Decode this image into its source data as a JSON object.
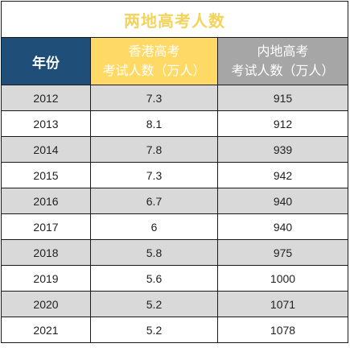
{
  "title": "两地高考人数",
  "headers": {
    "year": "年份",
    "hk_line1": "香港高考",
    "hk_line2": "考试人数（万人）",
    "ml_line1": "内地高考",
    "ml_line2": "考试人数（万人）"
  },
  "rows": [
    {
      "year": "2012",
      "hk": "7.3",
      "ml": "915"
    },
    {
      "year": "2013",
      "hk": "8.1",
      "ml": "912"
    },
    {
      "year": "2014",
      "hk": "7.8",
      "ml": "939"
    },
    {
      "year": "2015",
      "hk": "7.3",
      "ml": "942"
    },
    {
      "year": "2016",
      "hk": "6.7",
      "ml": "940"
    },
    {
      "year": "2017",
      "hk": "6",
      "ml": "940"
    },
    {
      "year": "2018",
      "hk": "5.8",
      "ml": "975"
    },
    {
      "year": "2019",
      "hk": "5.6",
      "ml": "1000"
    },
    {
      "year": "2020",
      "hk": "5.2",
      "ml": "1071"
    },
    {
      "year": "2021",
      "hk": "5.2",
      "ml": "1078"
    }
  ],
  "colors": {
    "title": "#f2d35c",
    "year_header": "#1f4e79",
    "hk_header": "#ffd966",
    "ml_header": "#a6a6a6",
    "shade_row": "#d9d9d9"
  }
}
